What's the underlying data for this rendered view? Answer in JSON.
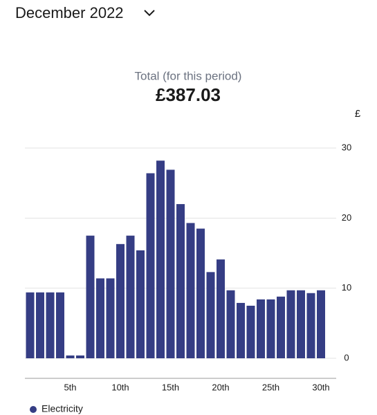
{
  "header": {
    "title": "December 2022"
  },
  "summary": {
    "label": "Total (for this period)",
    "value": "£387.03"
  },
  "chart_data": {
    "type": "bar",
    "y_label": "£",
    "categories": [
      null,
      null,
      null,
      null,
      "5th",
      null,
      null,
      null,
      null,
      "10th",
      null,
      null,
      null,
      null,
      "15th",
      null,
      null,
      null,
      null,
      "20th",
      null,
      null,
      null,
      null,
      "25th",
      null,
      null,
      null,
      null,
      "30th"
    ],
    "series": [
      {
        "name": "Electricity",
        "color": "#353d84",
        "values": [
          9.4,
          9.4,
          9.4,
          9.4,
          0.4,
          0.4,
          17.5,
          11.4,
          11.4,
          16.3,
          17.5,
          15.4,
          26.4,
          28.2,
          26.9,
          22.0,
          19.3,
          18.5,
          12.3,
          14.1,
          9.7,
          7.9,
          7.5,
          8.4,
          8.4,
          8.8,
          9.7,
          9.7,
          9.3,
          9.7
        ]
      }
    ],
    "ylim": [
      0,
      30
    ],
    "yticks": [
      0,
      10,
      20,
      30
    ],
    "grid": true
  }
}
